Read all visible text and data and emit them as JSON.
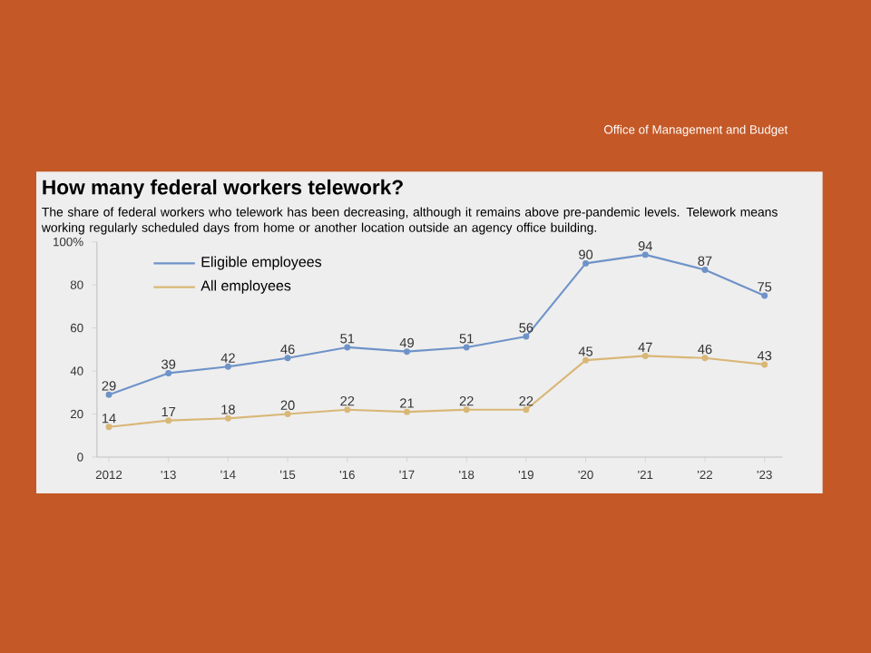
{
  "chart_data": {
    "type": "line",
    "title": "How many federal workers telework?",
    "subtitle": "The share of federal workers who telework has been decreasing, although it remains above pre-pandemic levels. Telework means working regularly scheduled days from home or another location outside an agency office building.",
    "annotations": [
      "Office of Management and Budget"
    ],
    "categories": [
      "2012",
      "'13",
      "'14",
      "'15",
      "'16",
      "'17",
      "'18",
      "'19",
      "'20",
      "'21",
      "'22",
      "'23"
    ],
    "series": [
      {
        "name": "Eligible employees",
        "color": "#6f93c8",
        "values": [
          29,
          39,
          42,
          46,
          51,
          49,
          51,
          56,
          90,
          94,
          87,
          75
        ]
      },
      {
        "name": "All employees",
        "color": "#d9b777",
        "values": [
          14,
          17,
          18,
          20,
          22,
          21,
          22,
          22,
          45,
          47,
          46,
          43
        ]
      }
    ],
    "ylim": [
      0,
      100
    ],
    "yticks": [
      0,
      20,
      40,
      60,
      80,
      {
        "value": 100,
        "label": "100%"
      }
    ],
    "data_labels": true,
    "legend": "top left",
    "marker": "circle",
    "line_style": "solid",
    "grid": false
  }
}
